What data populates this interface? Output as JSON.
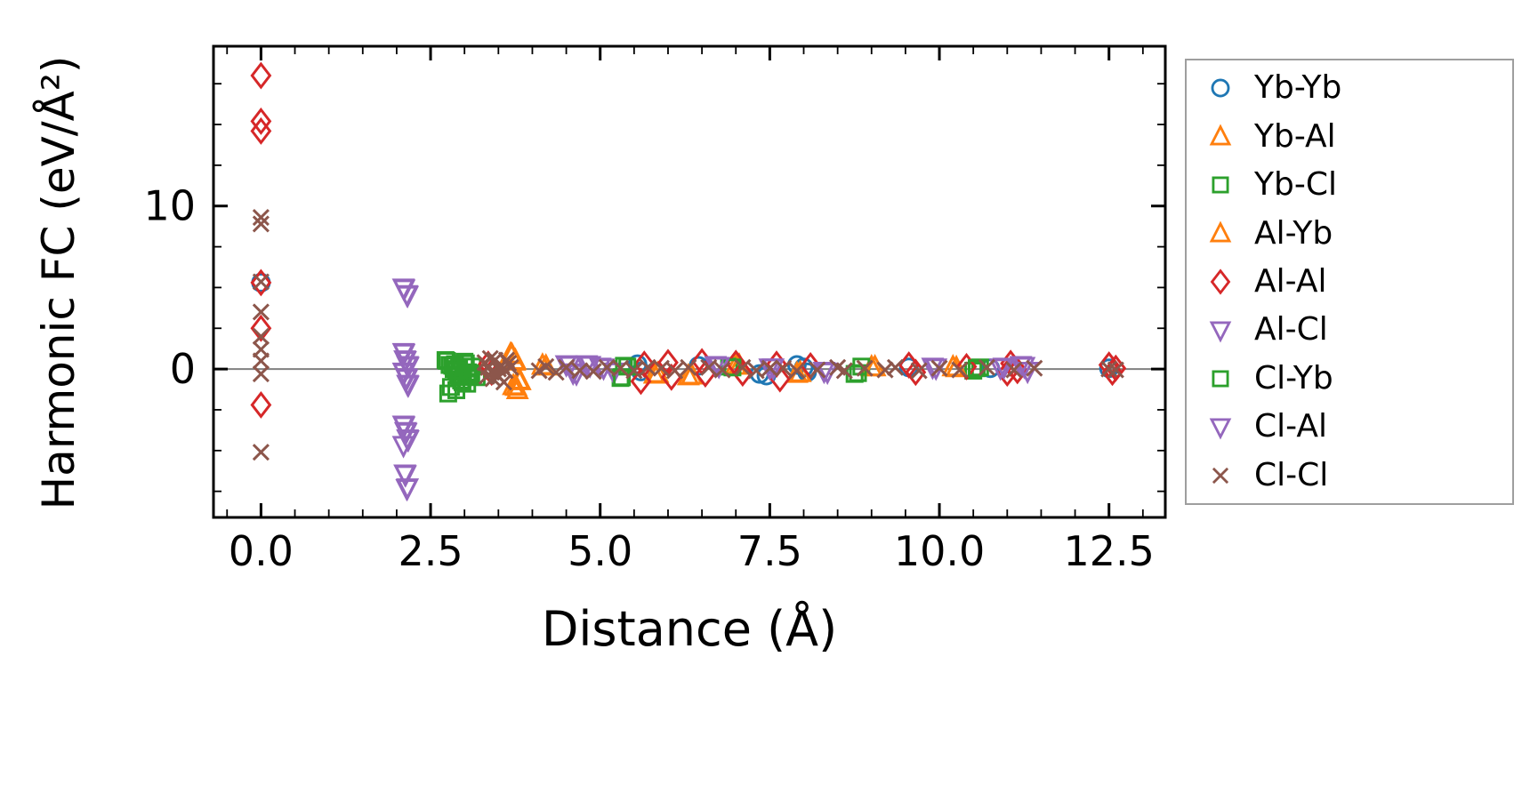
{
  "chart_data": {
    "type": "scatter",
    "title": "",
    "xlabel": "Distance (Å)",
    "ylabel": "Harmonic FC (eV/Å²)",
    "xlim": [
      -0.7,
      13.33
    ],
    "ylim": [
      -9.1,
      19.8
    ],
    "grid": false,
    "zero_line": true,
    "zero_line_color": "#808080",
    "legend_position": "outside upper right",
    "xticks": {
      "values": [
        0,
        2.5,
        5,
        7.5,
        10,
        12.5
      ],
      "labels": [
        "0.0",
        "2.5",
        "5.0",
        "7.5",
        "10.0",
        "12.5"
      ]
    },
    "yticks": {
      "values": [
        0,
        10
      ],
      "labels": [
        "0",
        "10"
      ]
    },
    "x_minor_step": 0.5,
    "y_minor_step": 2.5,
    "series": [
      {
        "name": "Yb-Yb",
        "marker": "circle",
        "color": "#1f77b4",
        "points": [
          [
            0,
            5.3
          ],
          [
            5.55,
            0.3
          ],
          [
            5.6,
            -0.15
          ],
          [
            6.45,
            0.2
          ],
          [
            7.35,
            -0.3
          ],
          [
            7.45,
            -0.4
          ],
          [
            7.9,
            0.25
          ],
          [
            8.0,
            0.1
          ],
          [
            8.05,
            -0.2
          ],
          [
            9.55,
            0.1
          ],
          [
            10.75,
            0.05
          ],
          [
            12.5,
            0.05
          ]
        ]
      },
      {
        "name": "Yb-Al",
        "marker": "triangle-up",
        "color": "#ff7f0e",
        "points": [
          [
            3.7,
            0.85
          ],
          [
            3.75,
            0.5
          ],
          [
            3.8,
            -0.7
          ],
          [
            3.72,
            -1.05
          ],
          [
            3.78,
            -1.3
          ],
          [
            4.15,
            0.2
          ],
          [
            5.8,
            -0.35
          ],
          [
            6.3,
            -0.45
          ],
          [
            7.0,
            0.2
          ],
          [
            7.9,
            -0.3
          ],
          [
            9.0,
            0.1
          ],
          [
            10.2,
            0.1
          ]
        ]
      },
      {
        "name": "Yb-Cl",
        "marker": "square",
        "color": "#2ca02c",
        "points": [
          [
            2.72,
            0.55
          ],
          [
            2.78,
            0.25
          ],
          [
            2.84,
            0.0
          ],
          [
            2.9,
            -0.35
          ],
          [
            2.95,
            -0.7
          ],
          [
            2.8,
            -1.1
          ],
          [
            2.76,
            -1.5
          ],
          [
            3.0,
            0.45
          ],
          [
            3.05,
            -0.2
          ],
          [
            3.12,
            0.15
          ],
          [
            3.18,
            -0.5
          ],
          [
            2.86,
            0.3
          ],
          [
            2.92,
            0.1
          ],
          [
            2.98,
            -0.5
          ],
          [
            3.04,
            -0.9
          ],
          [
            3.1,
            -0.35
          ],
          [
            2.88,
            -1.3
          ],
          [
            5.3,
            -0.55
          ],
          [
            5.35,
            0.2
          ],
          [
            6.9,
            0.15
          ],
          [
            8.75,
            -0.3
          ],
          [
            8.85,
            0.15
          ],
          [
            10.5,
            -0.1
          ],
          [
            10.6,
            0.1
          ]
        ]
      },
      {
        "name": "Al-Yb",
        "marker": "triangle-up",
        "color": "#ff7f0e",
        "points": [
          [
            3.68,
            0.9
          ],
          [
            3.74,
            0.45
          ],
          [
            3.82,
            -0.75
          ],
          [
            3.76,
            -1.1
          ],
          [
            4.2,
            0.15
          ],
          [
            5.85,
            -0.3
          ],
          [
            6.35,
            -0.4
          ],
          [
            7.05,
            0.2
          ],
          [
            7.95,
            -0.25
          ],
          [
            9.05,
            0.1
          ],
          [
            10.25,
            0.05
          ]
        ]
      },
      {
        "name": "Al-Al",
        "marker": "diamond",
        "color": "#d62728",
        "points": [
          [
            0,
            18.0
          ],
          [
            0,
            15.2
          ],
          [
            0,
            14.6
          ],
          [
            0,
            5.3
          ],
          [
            0,
            2.5
          ],
          [
            0,
            -2.2
          ],
          [
            3.35,
            0.3
          ],
          [
            3.4,
            -0.2
          ],
          [
            5.6,
            -0.75
          ],
          [
            5.65,
            0.3
          ],
          [
            6.0,
            0.4
          ],
          [
            6.05,
            -0.5
          ],
          [
            6.5,
            0.45
          ],
          [
            6.55,
            -0.3
          ],
          [
            7.0,
            0.35
          ],
          [
            7.1,
            -0.25
          ],
          [
            7.6,
            0.3
          ],
          [
            7.65,
            -0.6
          ],
          [
            8.1,
            0.2
          ],
          [
            9.55,
            0.25
          ],
          [
            9.65,
            -0.2
          ],
          [
            10.4,
            0.15
          ],
          [
            11.0,
            -0.25
          ],
          [
            11.05,
            0.35
          ],
          [
            11.15,
            -0.1
          ],
          [
            12.5,
            0.25
          ],
          [
            12.55,
            -0.2
          ],
          [
            12.6,
            0.05
          ]
        ]
      },
      {
        "name": "Al-Cl",
        "marker": "triangle-down",
        "color": "#9467bd",
        "points": [
          [
            2.1,
            5.0
          ],
          [
            2.15,
            4.6
          ],
          [
            2.1,
            1.05
          ],
          [
            2.12,
            0.6
          ],
          [
            2.16,
            0.25
          ],
          [
            2.1,
            -0.15
          ],
          [
            2.14,
            -0.5
          ],
          [
            2.16,
            -0.9
          ],
          [
            2.1,
            -3.4
          ],
          [
            2.13,
            -3.8
          ],
          [
            2.16,
            -4.25
          ],
          [
            2.1,
            -4.65
          ],
          [
            2.12,
            -6.4
          ],
          [
            2.15,
            -7.3
          ],
          [
            4.5,
            0.3
          ],
          [
            4.6,
            -0.2
          ],
          [
            4.8,
            0.3
          ],
          [
            5.0,
            0.15
          ],
          [
            5.2,
            -0.15
          ],
          [
            6.7,
            0.25
          ],
          [
            7.5,
            0.1
          ],
          [
            8.3,
            -0.1
          ],
          [
            9.9,
            0.15
          ],
          [
            10.9,
            0.1
          ],
          [
            11.2,
            0.25
          ],
          [
            11.3,
            -0.1
          ]
        ]
      },
      {
        "name": "Cl-Yb",
        "marker": "square",
        "color": "#2ca02c",
        "points": [
          [
            2.74,
            0.5
          ],
          [
            2.82,
            0.2
          ],
          [
            2.88,
            -0.1
          ],
          [
            2.92,
            -0.45
          ],
          [
            2.97,
            -0.8
          ],
          [
            3.02,
            0.35
          ],
          [
            3.08,
            -0.25
          ],
          [
            5.32,
            -0.5
          ],
          [
            5.4,
            0.15
          ],
          [
            6.95,
            0.1
          ],
          [
            8.8,
            -0.25
          ],
          [
            10.55,
            0.05
          ]
        ]
      },
      {
        "name": "Cl-Al",
        "marker": "triangle-down",
        "color": "#9467bd",
        "points": [
          [
            2.11,
            4.95
          ],
          [
            2.16,
            4.55
          ],
          [
            2.11,
            1.0
          ],
          [
            2.13,
            0.55
          ],
          [
            2.17,
            0.2
          ],
          [
            2.11,
            -0.2
          ],
          [
            2.15,
            -0.55
          ],
          [
            2.17,
            -0.95
          ],
          [
            2.11,
            -3.45
          ],
          [
            2.14,
            -3.85
          ],
          [
            2.17,
            -4.3
          ],
          [
            2.13,
            -6.45
          ],
          [
            2.16,
            -7.25
          ],
          [
            4.55,
            0.25
          ],
          [
            4.65,
            -0.25
          ],
          [
            4.85,
            0.25
          ],
          [
            5.05,
            0.1
          ],
          [
            6.75,
            0.2
          ],
          [
            7.55,
            0.1
          ],
          [
            8.35,
            -0.15
          ],
          [
            9.95,
            0.1
          ],
          [
            10.95,
            0.15
          ],
          [
            11.25,
            0.2
          ]
        ]
      },
      {
        "name": "Cl-Cl",
        "marker": "x",
        "color": "#8c564b",
        "points": [
          [
            0,
            9.3
          ],
          [
            0,
            8.9
          ],
          [
            0,
            5.35
          ],
          [
            0,
            3.5
          ],
          [
            0,
            2.0
          ],
          [
            0,
            1.2
          ],
          [
            0,
            0.5
          ],
          [
            0,
            -0.3
          ],
          [
            0,
            -5.1
          ],
          [
            3.3,
            0.4
          ],
          [
            3.35,
            0.1
          ],
          [
            3.4,
            -0.2
          ],
          [
            3.45,
            0.55
          ],
          [
            3.5,
            -0.45
          ],
          [
            3.55,
            0.2
          ],
          [
            3.6,
            -0.1
          ],
          [
            3.65,
            0.35
          ],
          [
            3.5,
            0.0
          ],
          [
            3.42,
            -0.6
          ],
          [
            3.58,
            -0.8
          ],
          [
            3.38,
            0.65
          ],
          [
            3.62,
            0.55
          ],
          [
            3.47,
            -0.3
          ],
          [
            3.68,
            0.1
          ],
          [
            3.33,
            -0.45
          ],
          [
            4.1,
            -0.1
          ],
          [
            4.2,
            0.15
          ],
          [
            4.35,
            -0.2
          ],
          [
            4.5,
            0.1
          ],
          [
            4.7,
            -0.1
          ],
          [
            4.9,
            -0.15
          ],
          [
            5.1,
            0.1
          ],
          [
            5.3,
            0.05
          ],
          [
            5.5,
            -0.1
          ],
          [
            5.7,
            0.1
          ],
          [
            5.9,
            0.05
          ],
          [
            6.1,
            -0.1
          ],
          [
            6.3,
            0.1
          ],
          [
            6.6,
            0.1
          ],
          [
            6.8,
            -0.05
          ],
          [
            7.1,
            0.1
          ],
          [
            7.3,
            -0.1
          ],
          [
            7.5,
            0.05
          ],
          [
            7.7,
            0.05
          ],
          [
            7.9,
            -0.1
          ],
          [
            8.2,
            -0.05
          ],
          [
            8.5,
            0.1
          ],
          [
            8.6,
            -0.1
          ],
          [
            8.9,
            0.05
          ],
          [
            9.2,
            -0.05
          ],
          [
            9.35,
            0.1
          ],
          [
            9.7,
            -0.1
          ],
          [
            10.0,
            0.05
          ],
          [
            10.3,
            -0.05
          ],
          [
            10.7,
            0.1
          ],
          [
            11.1,
            -0.05
          ],
          [
            11.4,
            0.05
          ],
          [
            12.5,
            0.0
          ],
          [
            12.6,
            -0.05
          ]
        ]
      }
    ]
  }
}
